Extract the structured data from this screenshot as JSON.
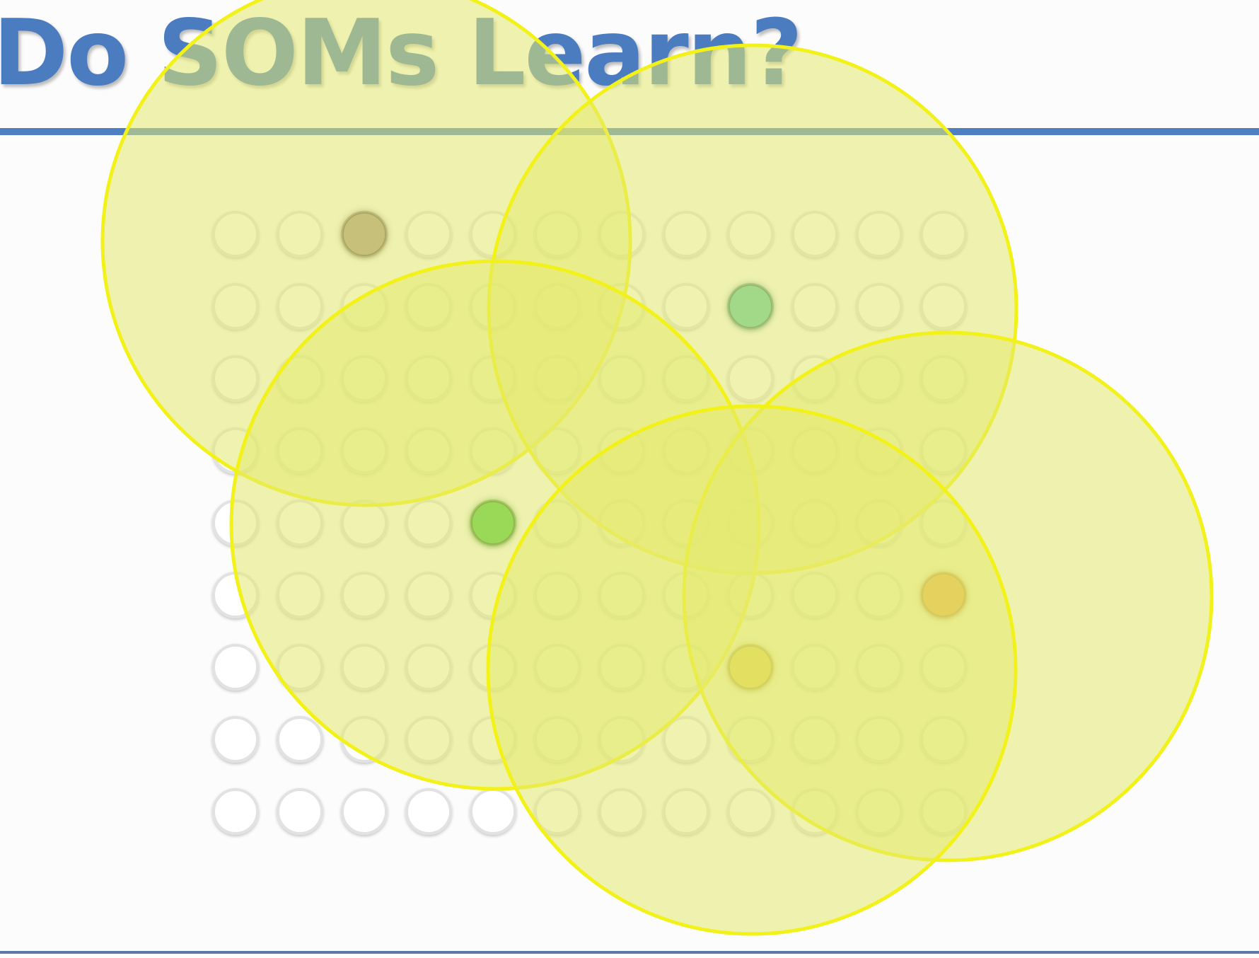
{
  "slide": {
    "title": "Do SOMs Learn?",
    "title_color": "#4c7cc0",
    "rule_color": "#4f7fc3"
  },
  "som_grid": {
    "rows": 9,
    "cols": 12,
    "node_fill": "#ffffff",
    "node_stroke": "#e2e2e2"
  },
  "best_matching_units": [
    {
      "color_name": "brown",
      "color": "#a38e8b",
      "row": 0,
      "col": 2
    },
    {
      "color_name": "teal",
      "color": "#52c6a9",
      "row": 1,
      "col": 8
    },
    {
      "color_name": "green",
      "color": "#3fc43b",
      "row": 4,
      "col": 4
    },
    {
      "color_name": "orange",
      "color": "#e87a1a",
      "row": 5,
      "col": 11
    },
    {
      "color_name": "amber",
      "color": "#e3b52a",
      "row": 6,
      "col": 8
    }
  ],
  "neighborhoods": {
    "fill": "#e3e96f",
    "stroke": "#f2f21a",
    "count": 5
  }
}
